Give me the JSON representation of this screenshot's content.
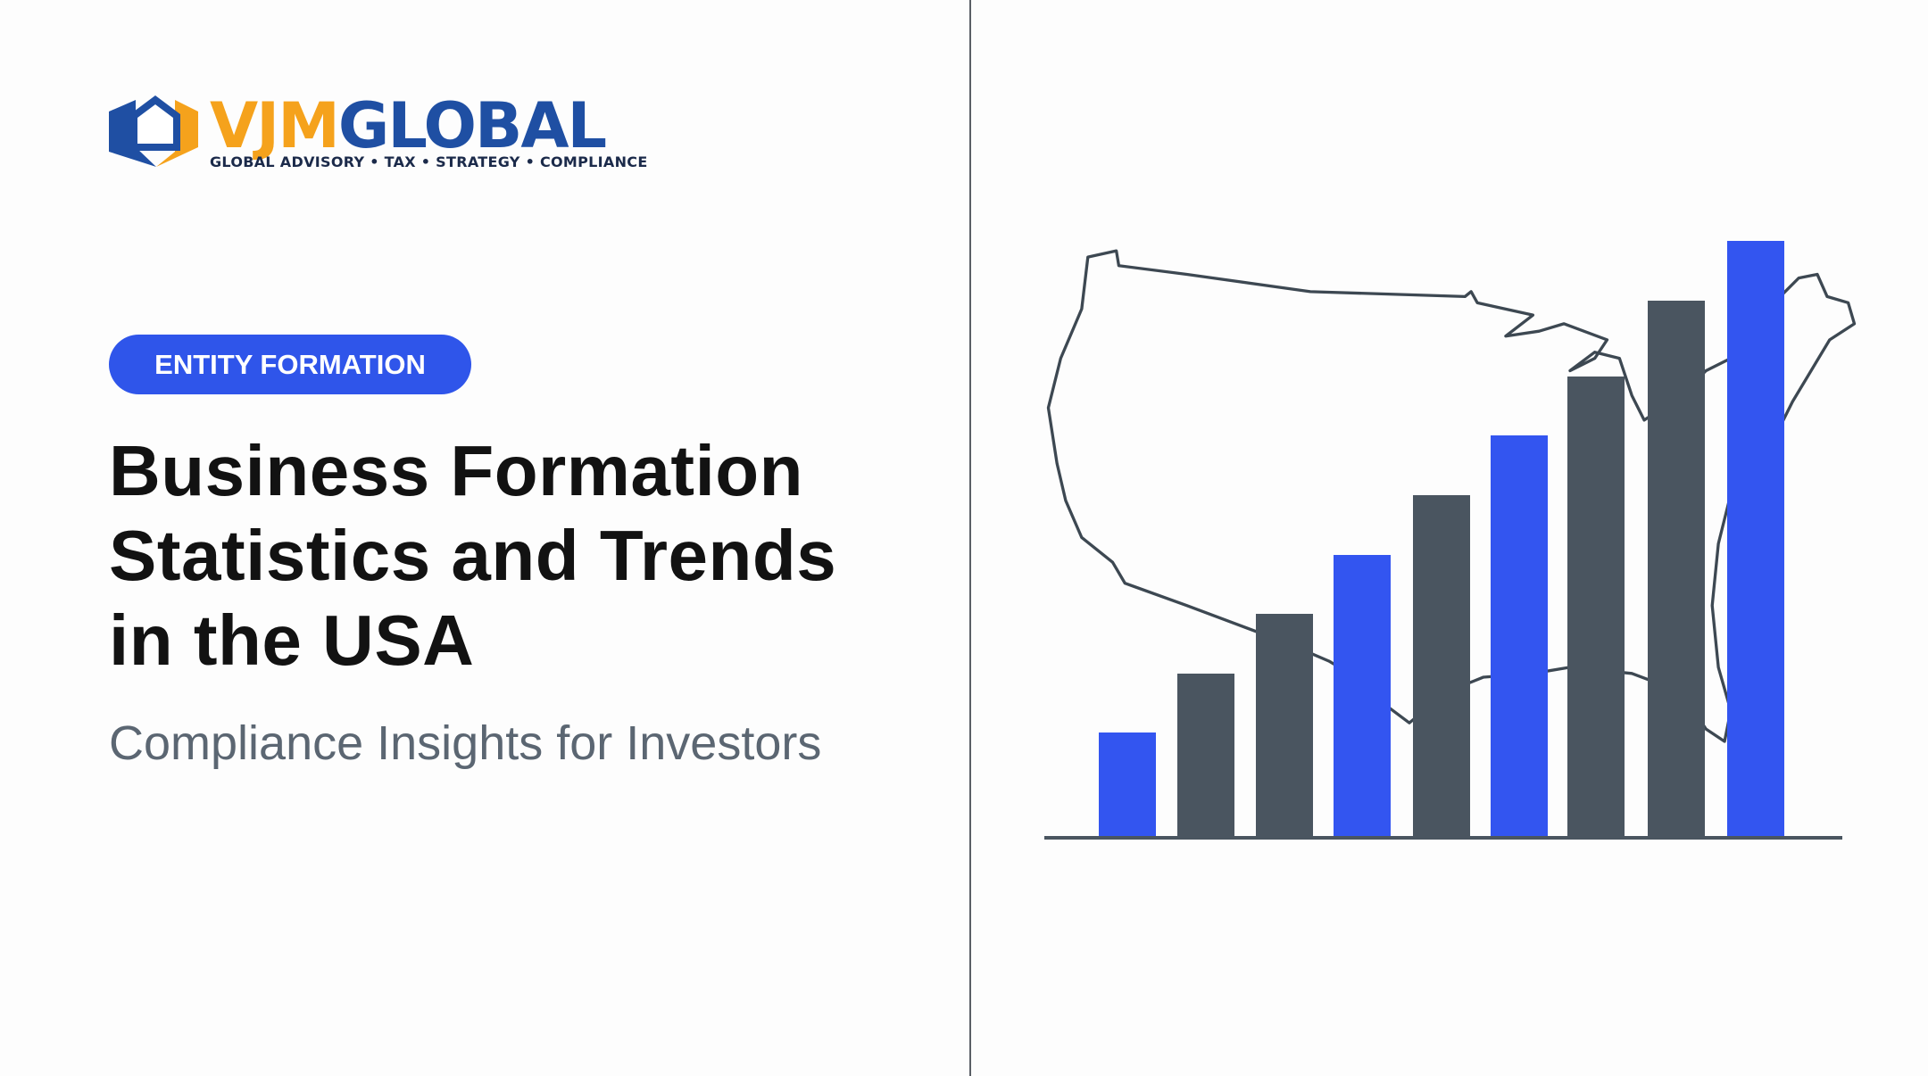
{
  "logo": {
    "name_first": "VJM",
    "name_second": "GLOBAL",
    "tagline": "GLOBAL ADVISORY • TAX • STRATEGY • COMPLIANCE"
  },
  "badge": "ENTITY FORMATION",
  "title": [
    "Business Formation",
    "Statistics and Trends",
    "in the USA"
  ],
  "subtitle": "Compliance Insights for Investors"
}
